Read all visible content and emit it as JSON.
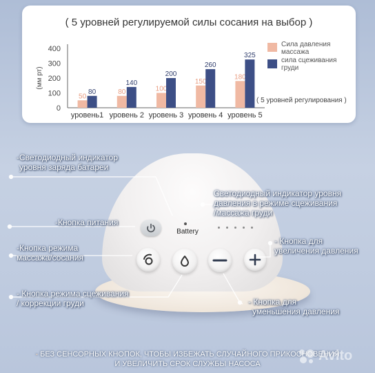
{
  "chart_data": {
    "type": "bar",
    "title": "( 5 уровней регулируемой силы сосания на выбор )",
    "ylabel": "(мм рт)",
    "ylim": [
      0,
      400
    ],
    "yticks": [
      "0",
      "100",
      "200",
      "300",
      "400"
    ],
    "categories": [
      "уровень1",
      "уровень 2",
      "уровень 3",
      "уровень 4",
      "уровень 5"
    ],
    "series": [
      {
        "name": "Сила давления массажа",
        "color": "#f0b9a3",
        "values": [
          50,
          80,
          100,
          150,
          180
        ],
        "labels": [
          "50",
          "80",
          "100",
          "150",
          "180"
        ]
      },
      {
        "name": "сила сцеживания груди",
        "color": "#3d4f86",
        "values": [
          80,
          140,
          200,
          260,
          325
        ],
        "labels": [
          "80",
          "140",
          "200",
          "260",
          "325"
        ]
      }
    ],
    "legend": [
      {
        "line1": "Сила давления",
        "line2": "массажа"
      },
      {
        "line1": "сила сцеживания",
        "line2": "груди"
      }
    ],
    "note": "( 5 уровней регулирования )",
    "legend_position": "right"
  },
  "device": {
    "battery_label": "Battery",
    "colors": {
      "body": "#f1efef",
      "base": "#efe6db",
      "power_button": "#c9cdd1",
      "callout_shadow": "#5a6b88"
    }
  },
  "callouts": {
    "battery_indicator": {
      "line1": "-Светодиодный индикатор",
      "line2": "уровня заряда батареи"
    },
    "pressure_indicator": {
      "line1": "Светодиодный индикатор уровня",
      "line2": "давления в режиме сцеживания",
      "line3": "/массажа груди"
    },
    "power_button": "-Кнопка питания",
    "increase_pressure": {
      "line1": "- Кнопка для",
      "line2": "увеличения давления"
    },
    "mode_button": {
      "line1": "-Кнопка режима",
      "line2": "массажа/сосания"
    },
    "expression_mode": {
      "line1": "- Кнопка режима сцеживания",
      "line2": "/ коррекции груди"
    },
    "decrease_pressure": {
      "line1": "- Кнопка для",
      "line2": "уменьшения давления"
    }
  },
  "bottom_note": {
    "line1_prefix": "- ",
    "line1": "БЕЗ СЕНСОРНЫХ КНОПОК, ЧТОБЫ ИЗБЕЖАТЬ СЛУЧАЙНОГО ПРИКОСНОВЕНИЯ",
    "line2": "И УВЕЛИЧИТЬ СРОК СЛУЖБЫ НАСОСА"
  },
  "watermark": {
    "text": "Avito",
    "icon": "avito-logo-icon"
  }
}
